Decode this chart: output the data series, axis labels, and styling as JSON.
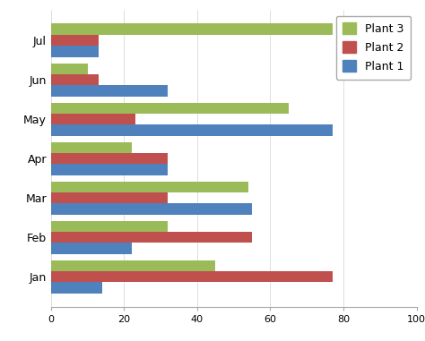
{
  "months": [
    "Jan",
    "Feb",
    "Mar",
    "Apr",
    "May",
    "Jun",
    "Jul"
  ],
  "plant3": [
    45,
    32,
    54,
    22,
    65,
    10,
    77
  ],
  "plant2": [
    77,
    55,
    32,
    32,
    23,
    13,
    13
  ],
  "plant1": [
    14,
    22,
    55,
    32,
    77,
    32,
    13
  ],
  "colors": {
    "Plant 3": "#9BBB59",
    "Plant 2": "#C0504D",
    "Plant 1": "#4F81BD"
  },
  "xlim": [
    0,
    100
  ],
  "xticks": [
    0,
    20,
    40,
    60,
    80,
    100
  ],
  "background_color": "#FFFFFF",
  "bar_height": 0.28,
  "figsize": [
    4.74,
    3.81
  ],
  "dpi": 100
}
